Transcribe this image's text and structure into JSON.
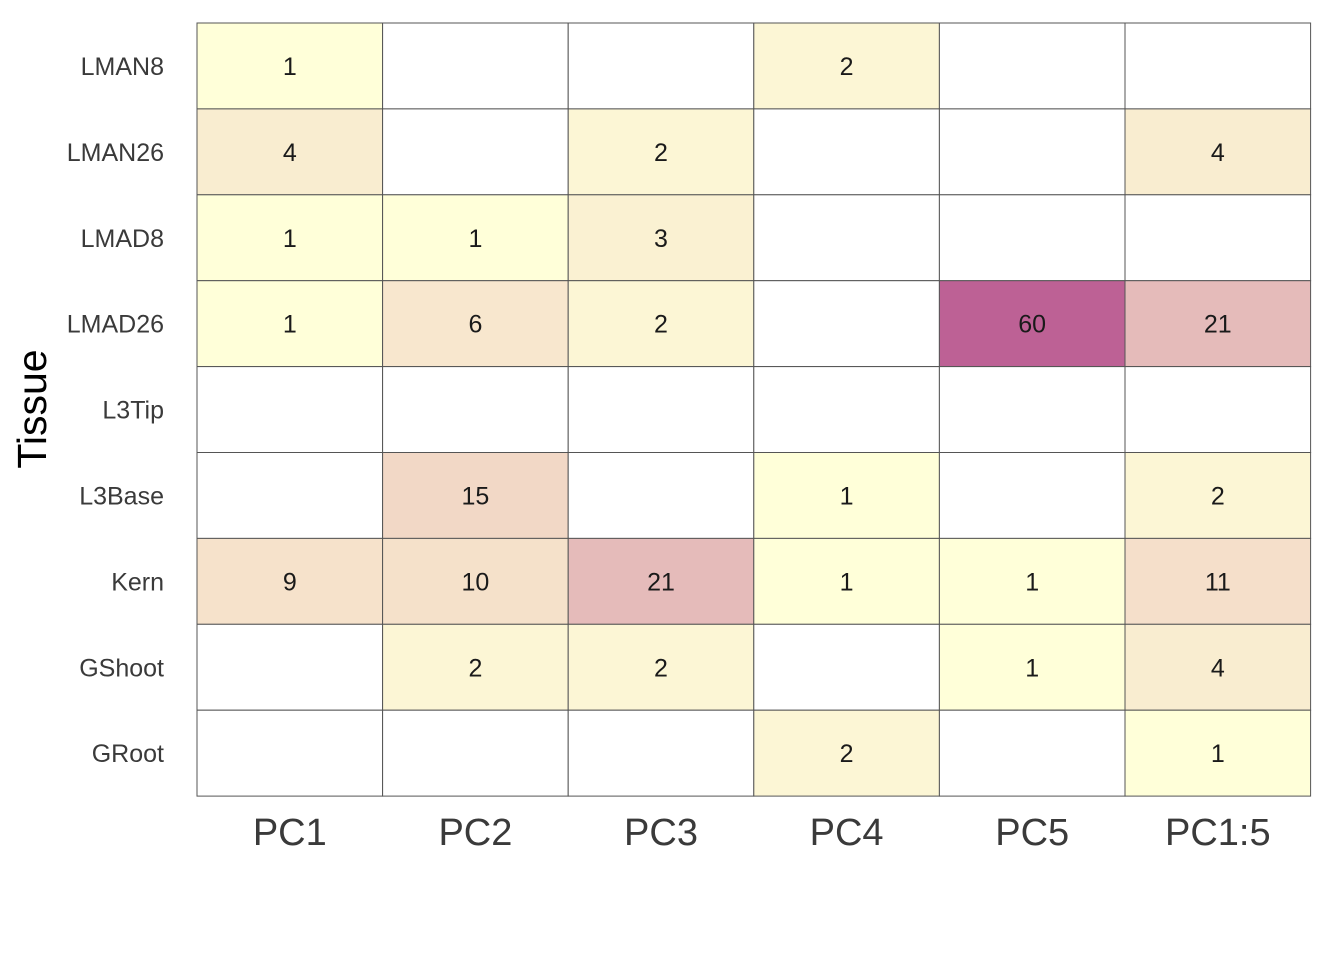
{
  "chart_data": {
    "type": "heatmap",
    "ylabel": "Tissue",
    "xlabel": "",
    "columns": [
      "PC1",
      "PC2",
      "PC3",
      "PC4",
      "PC5",
      "PC1:5"
    ],
    "rows": [
      "LMAN8",
      "LMAN26",
      "LMAD8",
      "LMAD26",
      "L3Tip",
      "L3Base",
      "Kern",
      "GShoot",
      "GRoot"
    ],
    "values": [
      [
        1,
        null,
        null,
        2,
        null,
        null
      ],
      [
        4,
        null,
        2,
        null,
        null,
        4
      ],
      [
        1,
        1,
        3,
        null,
        null,
        null
      ],
      [
        1,
        6,
        2,
        null,
        60,
        21
      ],
      [
        null,
        null,
        null,
        null,
        null,
        null
      ],
      [
        null,
        15,
        null,
        1,
        null,
        2
      ],
      [
        9,
        10,
        21,
        1,
        1,
        11
      ],
      [
        null,
        2,
        2,
        null,
        1,
        4
      ],
      [
        null,
        null,
        null,
        2,
        null,
        1
      ]
    ],
    "color_scale": {
      "low": "#ffffd9",
      "mid": "#f4dcc8",
      "high": "#bd6195",
      "empty": "#ffffff",
      "grid": "#555555"
    }
  }
}
